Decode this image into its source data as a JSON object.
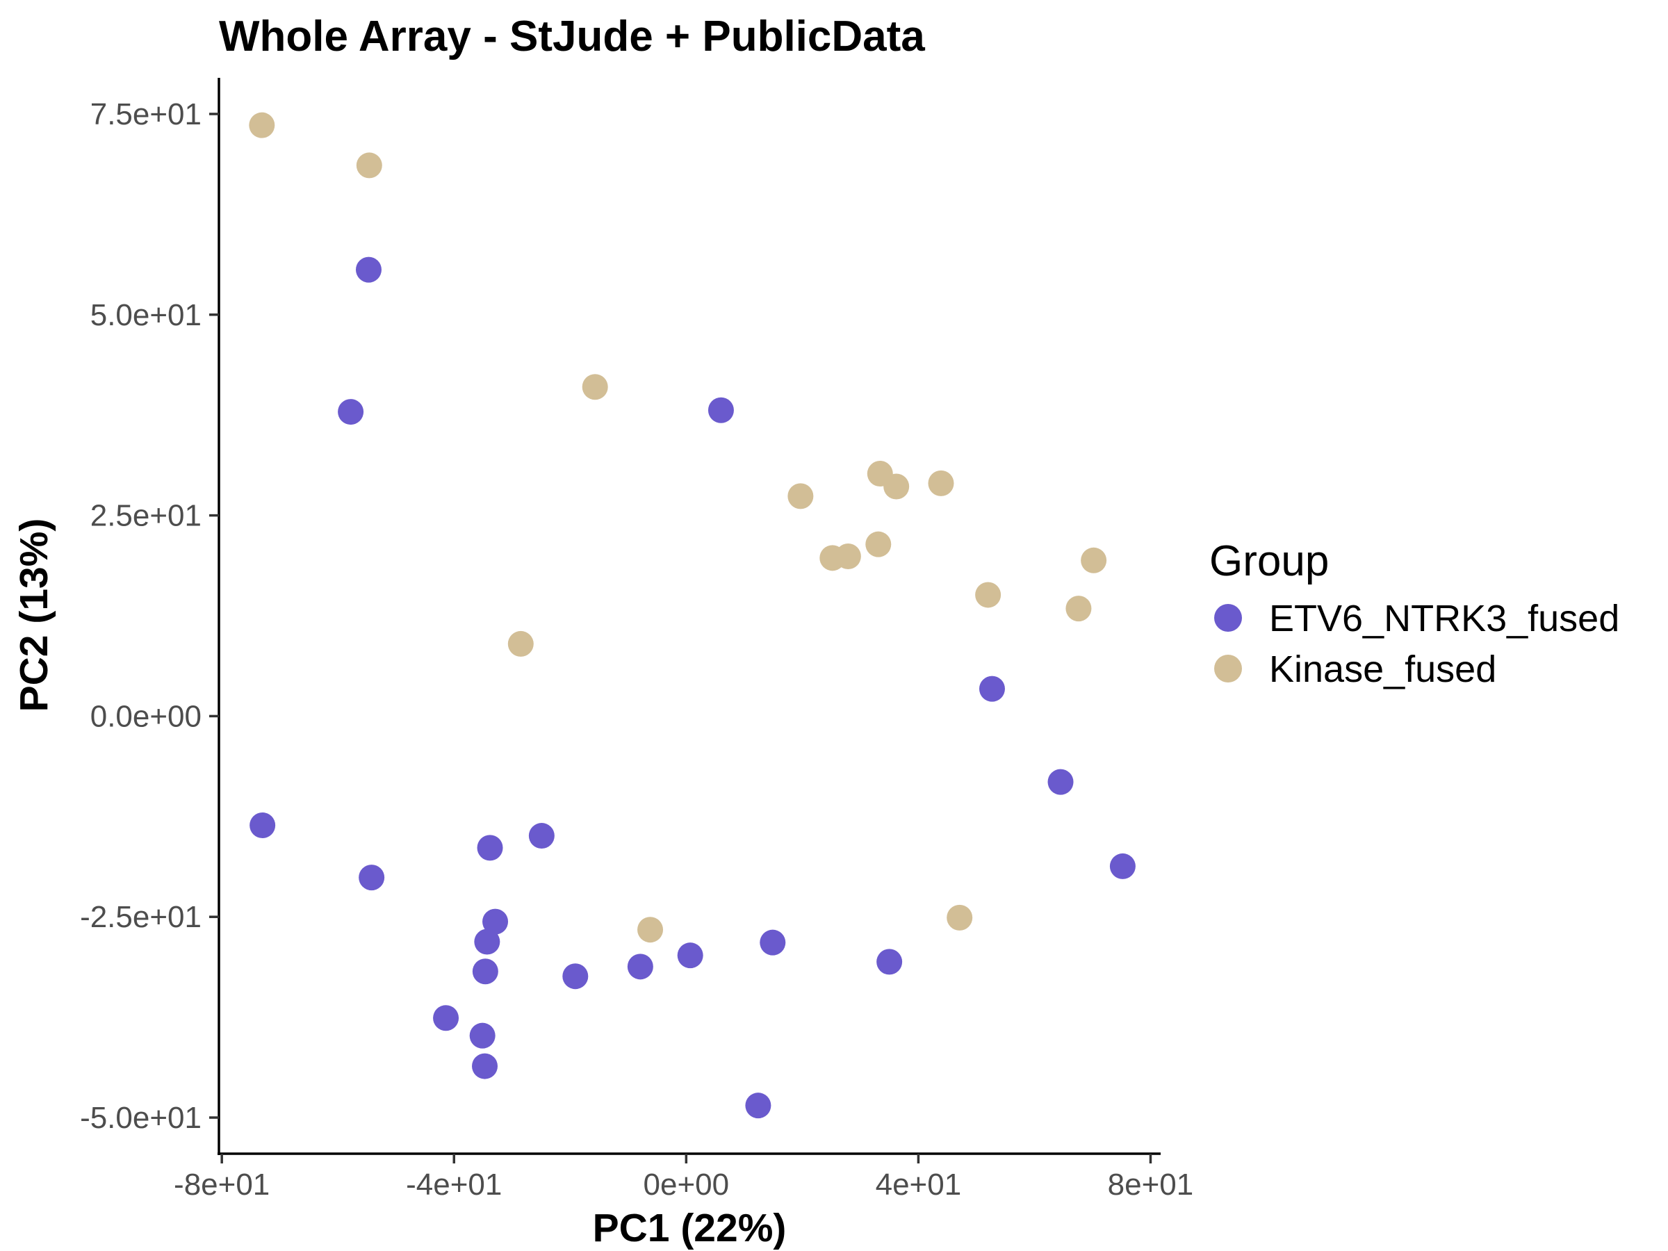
{
  "chart_data": {
    "type": "scatter",
    "title": "Whole Array - StJude + PublicData",
    "xlabel": "PC1 (22%)",
    "ylabel": "PC2 (13%)",
    "xlim": [
      -80.5,
      81.5
    ],
    "ylim": [
      -54.5,
      79.5
    ],
    "x_ticks": [
      -80,
      -40,
      0,
      40,
      80
    ],
    "x_tick_labels": [
      "-8e+01",
      "-4e+01",
      "0e+00",
      "4e+01",
      "8e+01"
    ],
    "y_ticks": [
      75,
      50,
      25,
      0,
      -25,
      -50
    ],
    "y_tick_labels": [
      "7.5e+01",
      "5.0e+01",
      "2.5e+01",
      "0.0e+00",
      "-2.5e+01",
      "-5.0e+01"
    ],
    "grid": false,
    "legend": {
      "title": "Group",
      "placement": "right"
    },
    "series": [
      {
        "name": "ETV6_NTRK3_fused",
        "color": "#6A5ACD",
        "points": [
          [
            -54.7,
            55.6
          ],
          [
            -57.8,
            37.9
          ],
          [
            6.0,
            38.1
          ],
          [
            52.7,
            3.4
          ],
          [
            -73.0,
            -13.6
          ],
          [
            64.5,
            -8.2
          ],
          [
            75.2,
            -18.7
          ],
          [
            -24.9,
            -14.9
          ],
          [
            -33.8,
            -16.4
          ],
          [
            -54.2,
            -20.1
          ],
          [
            -32.9,
            -25.6
          ],
          [
            -34.3,
            -28.1
          ],
          [
            -34.6,
            -31.8
          ],
          [
            -19.1,
            -32.4
          ],
          [
            -7.9,
            -31.2
          ],
          [
            0.7,
            -29.8
          ],
          [
            14.9,
            -28.2
          ],
          [
            35.0,
            -30.6
          ],
          [
            -41.4,
            -37.6
          ],
          [
            -35.1,
            -39.8
          ],
          [
            -34.7,
            -43.6
          ],
          [
            12.4,
            -48.5
          ]
        ]
      },
      {
        "name": "Kinase_fused",
        "color": "#D2BE96",
        "points": [
          [
            -73.1,
            73.6
          ],
          [
            -54.6,
            68.6
          ],
          [
            -15.7,
            41.0
          ],
          [
            -28.5,
            9.0
          ],
          [
            19.7,
            27.4
          ],
          [
            33.4,
            30.2
          ],
          [
            36.2,
            28.6
          ],
          [
            43.9,
            29.0
          ],
          [
            25.2,
            19.7
          ],
          [
            27.9,
            19.9
          ],
          [
            33.1,
            21.4
          ],
          [
            52.0,
            15.1
          ],
          [
            70.2,
            19.4
          ],
          [
            67.6,
            13.4
          ],
          [
            47.1,
            -25.1
          ],
          [
            -6.2,
            -26.6
          ]
        ]
      }
    ]
  }
}
